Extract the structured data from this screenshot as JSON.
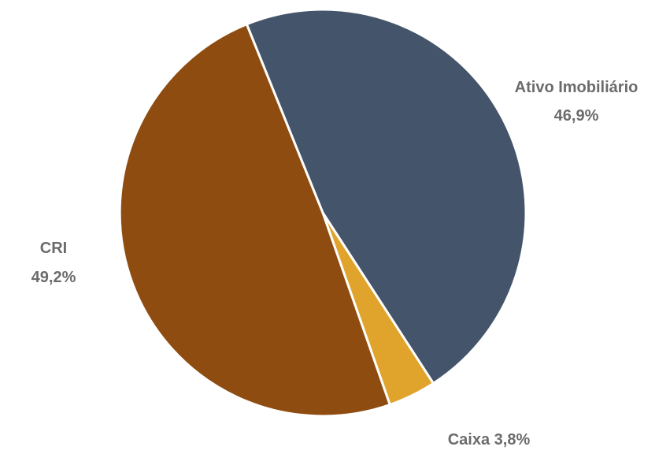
{
  "chart_data": {
    "type": "pie",
    "title": "",
    "slices": [
      {
        "label": "Ativo Imobiliário",
        "value": 46.9,
        "value_label": "46,9%",
        "color": "#44546a"
      },
      {
        "label": "Caixa",
        "value": 3.8,
        "value_label": "3,8%",
        "color": "#e0a42c"
      },
      {
        "label": "CRI",
        "value": 49.2,
        "value_label": "49,2%",
        "color": "#8f4c10"
      }
    ],
    "start_angle_deg": -22,
    "direction": "clockwise",
    "slice_border_color": "#ffffff",
    "label_color": "#6b6b6b",
    "legend": "none"
  }
}
